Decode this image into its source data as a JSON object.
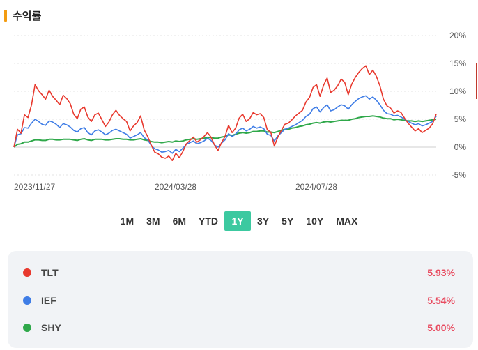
{
  "header": {
    "title": "수익률",
    "accent_color": "#f39c12"
  },
  "range_tabs": {
    "items": [
      "1M",
      "3M",
      "6M",
      "YTD",
      "1Y",
      "3Y",
      "5Y",
      "10Y",
      "MAX"
    ],
    "active": "1Y",
    "active_color": "#3cc9a0"
  },
  "legend": {
    "items": [
      {
        "name": "TLT",
        "value": "5.93%",
        "color": "#e8392e"
      },
      {
        "name": "IEF",
        "value": "5.54%",
        "color": "#3f7de6"
      },
      {
        "name": "SHY",
        "value": "5.00%",
        "color": "#2fa84a"
      }
    ]
  },
  "chart_data": {
    "type": "line",
    "title": "",
    "xlabel": "",
    "ylabel": "",
    "ylim": [
      -5,
      20
    ],
    "y_ticks": [
      "20%",
      "15%",
      "10%",
      "5%",
      "0%",
      "-5%"
    ],
    "y_tick_values": [
      20,
      15,
      10,
      5,
      0,
      -5
    ],
    "x_ticks": [
      "2023/11/27",
      "2024/03/28",
      "2024/07/28"
    ],
    "x_tick_indices": [
      0,
      40,
      80
    ],
    "x_count": 121,
    "grid": true,
    "series": [
      {
        "name": "TLT",
        "color": "#e8392e",
        "values": [
          0,
          3.2,
          2.5,
          5.8,
          5.3,
          7.6,
          11.2,
          10.1,
          9.4,
          8.6,
          10.2,
          9.1,
          8.4,
          7.6,
          9.3,
          8.7,
          7.8,
          5.9,
          5.1,
          6.8,
          7.2,
          5.4,
          4.6,
          5.8,
          6.1,
          4.9,
          3.7,
          4.5,
          5.8,
          6.6,
          5.7,
          5.1,
          4.6,
          2.9,
          3.8,
          4.4,
          5.6,
          3.1,
          1.9,
          0.4,
          -0.9,
          -1.2,
          -1.8,
          -2.0,
          -1.6,
          -2.4,
          -1.1,
          -1.9,
          -0.8,
          0.6,
          1.2,
          1.8,
          0.9,
          1.3,
          1.9,
          2.6,
          1.8,
          0.4,
          -0.6,
          0.8,
          1.9,
          3.9,
          2.6,
          3.4,
          5.2,
          5.9,
          4.6,
          5.1,
          6.2,
          5.8,
          6.0,
          5.3,
          3.1,
          2.7,
          0.2,
          1.8,
          3.0,
          4.1,
          4.3,
          4.9,
          5.6,
          6.1,
          6.6,
          8.1,
          8.9,
          10.7,
          11.2,
          9.1,
          11.1,
          12.4,
          9.8,
          10.2,
          11.0,
          12.2,
          11.6,
          9.4,
          11.3,
          12.5,
          13.4,
          14.1,
          14.6,
          13.0,
          13.8,
          12.7,
          11.0,
          8.6,
          7.4,
          7.0,
          6.1,
          6.5,
          6.2,
          5.2,
          4.3,
          3.6,
          2.9,
          3.3,
          2.6,
          3.0,
          3.4,
          4.2,
          5.93
        ]
      },
      {
        "name": "IEF",
        "color": "#3f7de6",
        "values": [
          0,
          2.2,
          2.4,
          3.5,
          3.4,
          4.3,
          5.0,
          4.6,
          4.1,
          3.9,
          4.7,
          4.5,
          4.1,
          3.5,
          4.2,
          4.0,
          3.6,
          3.0,
          2.7,
          3.3,
          3.5,
          2.6,
          2.2,
          2.9,
          3.1,
          2.7,
          2.2,
          2.5,
          3.0,
          3.2,
          2.9,
          2.6,
          2.3,
          1.6,
          1.9,
          2.2,
          2.6,
          1.7,
          1.3,
          0.3,
          -0.3,
          -0.5,
          -0.9,
          -0.8,
          -0.6,
          -1.1,
          -0.4,
          -0.8,
          -0.2,
          0.5,
          0.8,
          1.1,
          0.6,
          0.8,
          1.1,
          1.6,
          1.2,
          0.4,
          0.0,
          0.7,
          1.3,
          2.4,
          1.9,
          2.3,
          3.1,
          3.4,
          2.9,
          3.2,
          3.7,
          3.4,
          3.6,
          3.3,
          2.3,
          2.1,
          1.1,
          2.0,
          2.6,
          3.2,
          3.4,
          3.7,
          4.0,
          4.4,
          4.8,
          5.5,
          5.9,
          6.9,
          7.2,
          6.3,
          7.1,
          7.6,
          6.5,
          6.7,
          7.2,
          7.6,
          7.4,
          6.8,
          7.6,
          8.2,
          8.7,
          9.0,
          9.2,
          8.6,
          9.0,
          8.4,
          7.6,
          6.6,
          6.0,
          5.9,
          5.6,
          5.7,
          5.4,
          5.0,
          4.6,
          4.3,
          4.0,
          4.2,
          3.8,
          4.0,
          4.3,
          4.6,
          5.54
        ]
      },
      {
        "name": "SHY",
        "color": "#2fa84a",
        "values": [
          0,
          0.5,
          0.6,
          0.9,
          0.9,
          1.1,
          1.3,
          1.3,
          1.2,
          1.2,
          1.4,
          1.4,
          1.3,
          1.3,
          1.4,
          1.4,
          1.4,
          1.3,
          1.2,
          1.4,
          1.5,
          1.3,
          1.2,
          1.4,
          1.4,
          1.4,
          1.3,
          1.3,
          1.4,
          1.5,
          1.5,
          1.4,
          1.4,
          1.3,
          1.3,
          1.4,
          1.5,
          1.3,
          1.2,
          1.0,
          0.9,
          0.9,
          0.8,
          0.9,
          1.0,
          0.9,
          1.1,
          1.0,
          1.1,
          1.3,
          1.4,
          1.5,
          1.4,
          1.5,
          1.6,
          1.7,
          1.7,
          1.6,
          1.6,
          1.8,
          1.9,
          2.2,
          2.1,
          2.3,
          2.5,
          2.6,
          2.5,
          2.6,
          2.8,
          2.8,
          2.9,
          2.9,
          2.7,
          2.7,
          2.6,
          2.8,
          3.0,
          3.2,
          3.2,
          3.4,
          3.5,
          3.7,
          3.8,
          4.0,
          4.1,
          4.3,
          4.4,
          4.3,
          4.5,
          4.6,
          4.5,
          4.6,
          4.7,
          4.8,
          4.8,
          4.8,
          5.0,
          5.1,
          5.3,
          5.4,
          5.5,
          5.5,
          5.6,
          5.5,
          5.4,
          5.2,
          5.1,
          5.1,
          4.9,
          5.0,
          4.9,
          4.8,
          4.7,
          4.7,
          4.6,
          4.7,
          4.6,
          4.7,
          4.8,
          4.9,
          5.0
        ]
      }
    ]
  }
}
